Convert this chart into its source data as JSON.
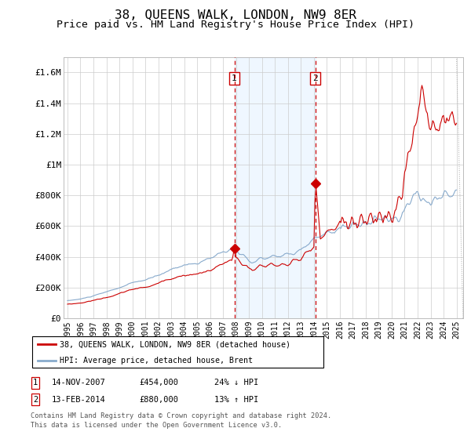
{
  "title": "38, QUEENS WALK, LONDON, NW9 8ER",
  "subtitle": "Price paid vs. HM Land Registry's House Price Index (HPI)",
  "title_fontsize": 11.5,
  "subtitle_fontsize": 9.5,
  "ylabel_ticks": [
    "£0",
    "£200K",
    "£400K",
    "£600K",
    "£800K",
    "£1M",
    "£1.2M",
    "£1.4M",
    "£1.6M"
  ],
  "ytick_values": [
    0,
    200000,
    400000,
    600000,
    800000,
    1000000,
    1200000,
    1400000,
    1600000
  ],
  "ylim": [
    0,
    1700000
  ],
  "xlim_start": 1994.7,
  "xlim_end": 2025.5,
  "transaction1_year": 2007.87,
  "transaction1_price": 454000,
  "transaction2_year": 2014.12,
  "transaction2_price": 880000,
  "shade_color": "#ddeeff",
  "shade_alpha": 0.45,
  "red_color": "#cc0000",
  "blue_color": "#88aacc",
  "marker_box_color": "#cc0000",
  "legend_label1": "38, QUEENS WALK, LONDON, NW9 8ER (detached house)",
  "legend_label2": "HPI: Average price, detached house, Brent",
  "footnote3": "Contains HM Land Registry data © Crown copyright and database right 2024.",
  "footnote4": "This data is licensed under the Open Government Licence v3.0."
}
